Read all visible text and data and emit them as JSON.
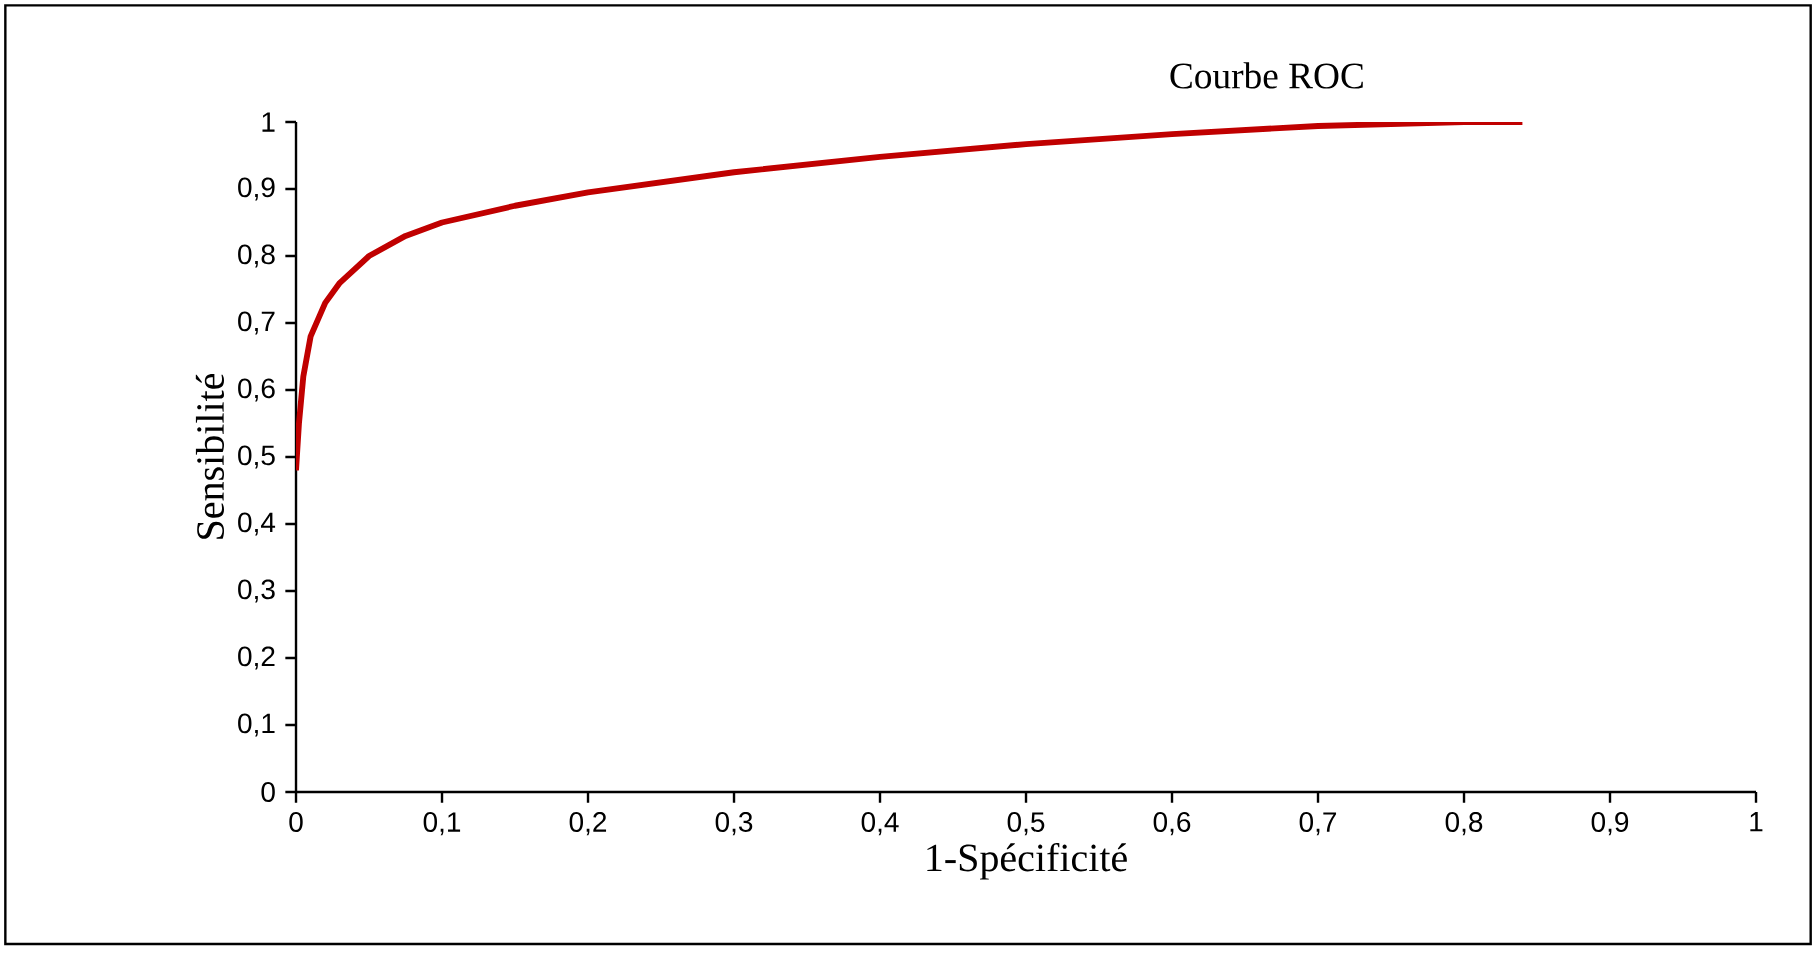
{
  "chart_data": {
    "type": "line",
    "title": "Courbe ROC",
    "xlabel": "1-Spécificité",
    "ylabel": "Sensibilité",
    "x": [
      0,
      0.002,
      0.005,
      0.01,
      0.02,
      0.03,
      0.05,
      0.075,
      0.1,
      0.15,
      0.2,
      0.3,
      0.4,
      0.5,
      0.6,
      0.7,
      0.8,
      0.84
    ],
    "series": [
      {
        "color": "#c00000",
        "values": [
          0.48,
          0.55,
          0.62,
          0.68,
          0.73,
          0.76,
          0.8,
          0.83,
          0.85,
          0.875,
          0.895,
          0.925,
          0.948,
          0.967,
          0.982,
          0.994,
          1.0,
          1.0
        ]
      }
    ],
    "xlim": [
      0,
      1
    ],
    "ylim": [
      0,
      1
    ],
    "xticks": [
      0,
      {
        "value": 0.1,
        "label": "0,1"
      },
      {
        "value": 0.2,
        "label": "0,2"
      },
      {
        "value": 0.3,
        "label": "0,3"
      },
      {
        "value": 0.4,
        "label": "0,4"
      },
      {
        "value": 0.5,
        "label": "0,5"
      },
      {
        "value": 0.6,
        "label": "0,6"
      },
      {
        "value": 0.7,
        "label": "0,7"
      },
      {
        "value": 0.8,
        "label": "0,8"
      },
      {
        "value": 0.9,
        "label": "0,9"
      },
      1
    ],
    "yticks": [
      0,
      {
        "value": 0.1,
        "label": "0,1"
      },
      {
        "value": 0.2,
        "label": "0,2"
      },
      {
        "value": 0.3,
        "label": "0,3"
      },
      {
        "value": 0.4,
        "label": "0,4"
      },
      {
        "value": 0.5,
        "label": "0,5"
      },
      {
        "value": 0.6,
        "label": "0,6"
      },
      {
        "value": 0.7,
        "label": "0,7"
      },
      {
        "value": 0.8,
        "label": "0,8"
      },
      {
        "value": 0.9,
        "label": "0,9"
      },
      1
    ],
    "marker": "none",
    "line_style": "solid"
  }
}
